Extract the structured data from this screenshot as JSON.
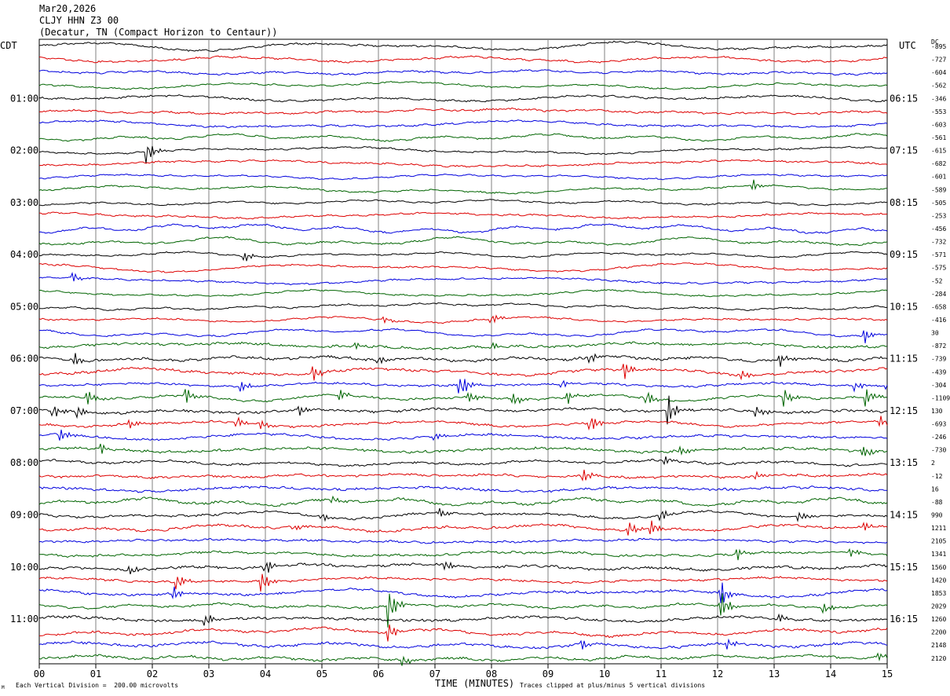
{
  "header": {
    "date": "Mar20,2026",
    "station": "CLJY HHN Z3 00",
    "location": "(Decatur, TN (Compact Horizon to Centaur))"
  },
  "left_tz": "CDT",
  "right_tz": "UTC",
  "dc_header": "DC",
  "footer": {
    "scale_note": "Each Vertical Division =  200.00 microvolts",
    "clip_note": "Traces clipped at plus/minus 5 vertical divisions",
    "corner_mark": "M"
  },
  "colors": {
    "cycle": [
      "#000000",
      "#dd0000",
      "#0000dd",
      "#006400"
    ],
    "grid": "#808080"
  },
  "chart_data": {
    "type": "line",
    "title": "",
    "xlabel": "TIME (MINUTES)",
    "ylabel": "",
    "xlim": [
      0,
      15
    ],
    "x_tick_labels": [
      "00",
      "01",
      "02",
      "03",
      "04",
      "05",
      "06",
      "07",
      "08",
      "09",
      "10",
      "11",
      "12",
      "13",
      "14",
      "15"
    ],
    "grid": true,
    "row_count": 48,
    "left_hour_labels": [
      "01:00",
      "02:00",
      "03:00",
      "04:00",
      "05:00",
      "06:00",
      "07:00",
      "08:00",
      "09:00",
      "10:00",
      "11:00"
    ],
    "right_hour_labels": [
      "06:15",
      "07:15",
      "08:15",
      "09:15",
      "10:15",
      "11:15",
      "12:15",
      "13:15",
      "14:15",
      "15:15",
      "16:15"
    ],
    "hour_label_first_row": 4,
    "hour_label_every": 4,
    "dc_offsets": [
      "-895",
      "-727",
      "-604",
      "-562",
      "-346",
      "-553",
      "-603",
      "-561",
      "-615",
      "-682",
      "-601",
      "-589",
      "-505",
      "-253",
      "-456",
      "-732",
      "-571",
      "-575",
      "-52",
      "-284",
      "-658",
      "-416",
      "30",
      "-872",
      "-739",
      "-439",
      "-304",
      "-1109",
      "130",
      "-693",
      "-246",
      "-730",
      "2",
      "-12",
      "16",
      "-88",
      "990",
      "1211",
      "2105",
      "1341",
      "1560",
      "1420",
      "1853",
      "2029",
      "1260",
      "2200",
      "2148",
      "2120"
    ],
    "events": [
      {
        "row": 8,
        "minute": 1.92,
        "amp": 2.2
      },
      {
        "row": 11,
        "minute": 12.65,
        "amp": 0.8
      },
      {
        "row": 16,
        "minute": 3.65,
        "amp": 0.9
      },
      {
        "row": 18,
        "minute": 0.6,
        "amp": 0.9
      },
      {
        "row": 21,
        "minute": 8.0,
        "amp": 0.9
      },
      {
        "row": 21,
        "minute": 6.1,
        "amp": 0.5
      },
      {
        "row": 22,
        "minute": 14.6,
        "amp": 1.2
      },
      {
        "row": 23,
        "minute": 5.6,
        "amp": 0.6
      },
      {
        "row": 23,
        "minute": 8.0,
        "amp": 0.9
      },
      {
        "row": 24,
        "minute": 0.65,
        "amp": 1.1
      },
      {
        "row": 24,
        "minute": 6.0,
        "amp": 0.8
      },
      {
        "row": 24,
        "minute": 9.75,
        "amp": 0.8
      },
      {
        "row": 24,
        "minute": 13.1,
        "amp": 1.0
      },
      {
        "row": 25,
        "minute": 4.85,
        "amp": 1.4
      },
      {
        "row": 25,
        "minute": 10.35,
        "amp": 1.6
      },
      {
        "row": 25,
        "minute": 12.45,
        "amp": 0.8
      },
      {
        "row": 26,
        "minute": 3.55,
        "amp": 1.3
      },
      {
        "row": 26,
        "minute": 7.45,
        "amp": 2.0
      },
      {
        "row": 26,
        "minute": 9.25,
        "amp": 0.8
      },
      {
        "row": 26,
        "minute": 14.45,
        "amp": 0.8
      },
      {
        "row": 26,
        "minute": 15.0,
        "amp": 1.0
      },
      {
        "row": 27,
        "minute": 0.85,
        "amp": 1.3
      },
      {
        "row": 27,
        "minute": 2.6,
        "amp": 1.4
      },
      {
        "row": 27,
        "minute": 5.3,
        "amp": 1.2
      },
      {
        "row": 27,
        "minute": 7.6,
        "amp": 1.2
      },
      {
        "row": 27,
        "minute": 8.4,
        "amp": 1.1
      },
      {
        "row": 27,
        "minute": 9.35,
        "amp": 1.0
      },
      {
        "row": 27,
        "minute": 10.75,
        "amp": 1.5
      },
      {
        "row": 27,
        "minute": 13.2,
        "amp": 1.4
      },
      {
        "row": 27,
        "minute": 14.65,
        "amp": 1.6
      },
      {
        "row": 28,
        "minute": 0.25,
        "amp": 1.2
      },
      {
        "row": 28,
        "minute": 0.7,
        "amp": 1.0
      },
      {
        "row": 28,
        "minute": 4.6,
        "amp": 1.2
      },
      {
        "row": 28,
        "minute": 11.15,
        "amp": 2.2
      },
      {
        "row": 28,
        "minute": 12.7,
        "amp": 1.0
      },
      {
        "row": 29,
        "minute": 1.6,
        "amp": 1.0
      },
      {
        "row": 29,
        "minute": 3.5,
        "amp": 1.0
      },
      {
        "row": 29,
        "minute": 3.95,
        "amp": 0.9
      },
      {
        "row": 29,
        "minute": 9.75,
        "amp": 1.8
      },
      {
        "row": 29,
        "minute": 14.9,
        "amp": 1.0
      },
      {
        "row": 30,
        "minute": 0.4,
        "amp": 1.1
      },
      {
        "row": 30,
        "minute": 7.0,
        "amp": 0.8
      },
      {
        "row": 31,
        "minute": 1.1,
        "amp": 0.8
      },
      {
        "row": 31,
        "minute": 11.35,
        "amp": 0.8
      },
      {
        "row": 31,
        "minute": 14.55,
        "amp": 1.3
      },
      {
        "row": 32,
        "minute": 11.05,
        "amp": 1.0
      },
      {
        "row": 33,
        "minute": 9.65,
        "amp": 1.0
      },
      {
        "row": 33,
        "minute": 12.7,
        "amp": 0.6
      },
      {
        "row": 35,
        "minute": 5.2,
        "amp": 0.6
      },
      {
        "row": 36,
        "minute": 5.0,
        "amp": 0.9
      },
      {
        "row": 36,
        "minute": 7.1,
        "amp": 0.8
      },
      {
        "row": 36,
        "minute": 11.0,
        "amp": 1.2
      },
      {
        "row": 36,
        "minute": 13.45,
        "amp": 1.0
      },
      {
        "row": 37,
        "minute": 4.5,
        "amp": 0.8
      },
      {
        "row": 37,
        "minute": 10.45,
        "amp": 1.2
      },
      {
        "row": 37,
        "minute": 10.8,
        "amp": 1.8
      },
      {
        "row": 37,
        "minute": 14.6,
        "amp": 0.8
      },
      {
        "row": 39,
        "minute": 12.35,
        "amp": 1.0
      },
      {
        "row": 39,
        "minute": 14.35,
        "amp": 0.8
      },
      {
        "row": 40,
        "minute": 1.6,
        "amp": 0.8
      },
      {
        "row": 40,
        "minute": 4.0,
        "amp": 1.4
      },
      {
        "row": 40,
        "minute": 7.2,
        "amp": 0.8
      },
      {
        "row": 40,
        "minute": 15.0,
        "amp": 0.8
      },
      {
        "row": 41,
        "minute": 3.95,
        "amp": 1.8
      },
      {
        "row": 41,
        "minute": 2.45,
        "amp": 1.2
      },
      {
        "row": 42,
        "minute": 2.4,
        "amp": 1.2
      },
      {
        "row": 42,
        "minute": 12.05,
        "amp": 2.6
      },
      {
        "row": 43,
        "minute": 6.2,
        "amp": 3.2
      },
      {
        "row": 43,
        "minute": 12.05,
        "amp": 2.8
      },
      {
        "row": 43,
        "minute": 13.9,
        "amp": 0.8
      },
      {
        "row": 44,
        "minute": 2.95,
        "amp": 1.2
      },
      {
        "row": 44,
        "minute": 13.1,
        "amp": 0.8
      },
      {
        "row": 45,
        "minute": 6.2,
        "amp": 1.4
      },
      {
        "row": 46,
        "minute": 9.6,
        "amp": 1.0
      },
      {
        "row": 46,
        "minute": 12.2,
        "amp": 0.8
      },
      {
        "row": 47,
        "minute": 6.45,
        "amp": 0.8
      },
      {
        "row": 47,
        "minute": 14.85,
        "amp": 0.8
      }
    ]
  }
}
